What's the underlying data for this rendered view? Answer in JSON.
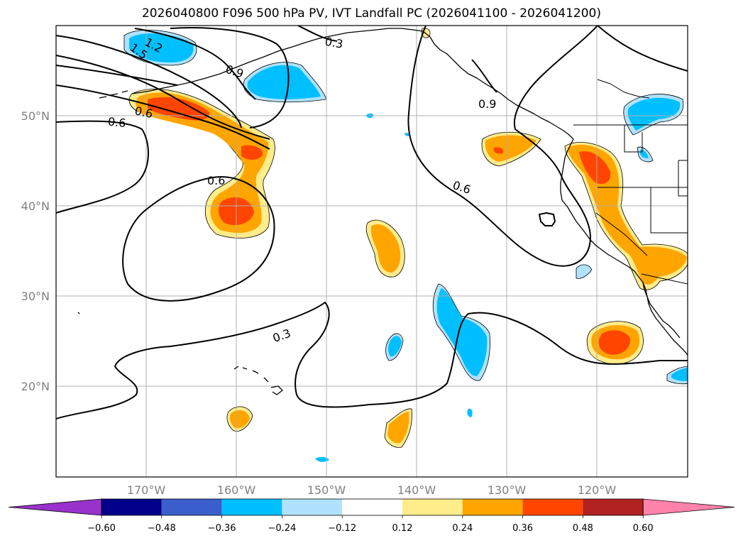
{
  "title": "2026040800 F096 500 hPa PV, IVT Landfall PC (2026041100 - 2026041200)",
  "axes": {
    "lon_ticks": [
      "170°W",
      "160°W",
      "150°W",
      "140°W",
      "130°W",
      "120°W"
    ],
    "lat_ticks": [
      "50°N",
      "40°N",
      "30°N",
      "20°N"
    ],
    "lon_range_deg": [
      -180,
      -110
    ],
    "lat_range_deg": [
      10,
      60
    ],
    "grid": true
  },
  "contour_labels": [
    "1.5",
    "1.2",
    "0.3",
    "0.9",
    "0.6",
    "0.6",
    "0.6",
    "0.9",
    "0.6",
    "0.3"
  ],
  "colorbar": {
    "ticks": [
      "−0.60",
      "−0.48",
      "−0.36",
      "−0.24",
      "−0.12",
      "0.12",
      "0.24",
      "0.36",
      "0.48",
      "0.60"
    ],
    "colors": [
      "#9932cc",
      "#00008b",
      "#3a5fcd",
      "#00bfff",
      "#b0e2ff",
      "#ffffff",
      "#ffec8b",
      "#ffa500",
      "#ff4500",
      "#b22222",
      "#ff82ab"
    ]
  },
  "colors": {
    "neg_light": "#b0e2ff",
    "neg_mid": "#00bfff",
    "pos_light": "#ffec8b",
    "pos_mid": "#ffa500",
    "pos_strong": "#ff4500",
    "grid": "#b0b0b0"
  }
}
